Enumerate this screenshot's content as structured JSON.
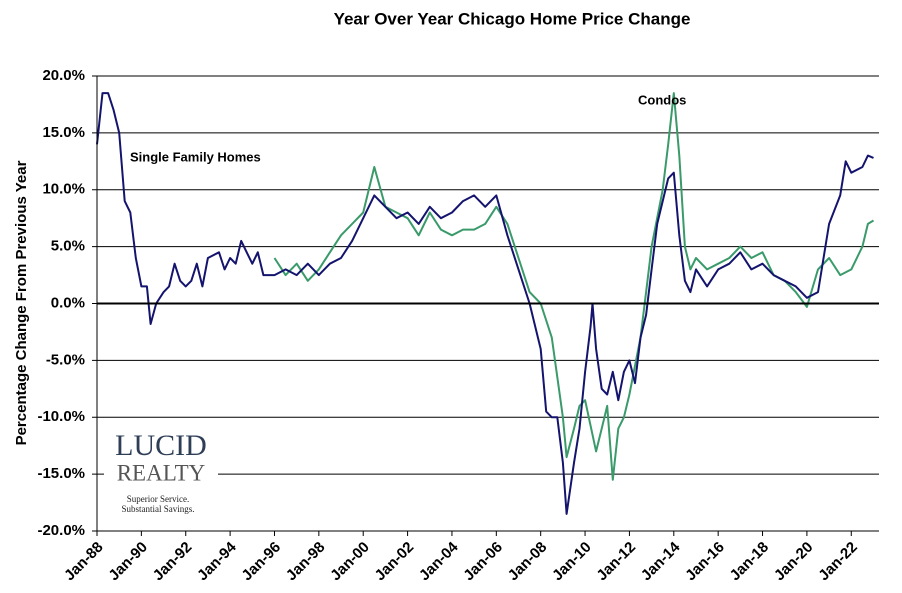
{
  "chart_data": {
    "type": "line",
    "title": "Year Over Year Chicago Home Price Change",
    "y_label": "Percentage Change From Previous Year",
    "annotations": [
      "Single Family Homes",
      "Condos"
    ],
    "xlim": [
      "1988-01",
      "2023-04"
    ],
    "xticks": [
      {
        "value": "1988-01",
        "label": "Jan-88"
      },
      {
        "value": "1990-01",
        "label": "Jan-90"
      },
      {
        "value": "1992-01",
        "label": "Jan-92"
      },
      {
        "value": "1994-01",
        "label": "Jan-94"
      },
      {
        "value": "1996-01",
        "label": "Jan-96"
      },
      {
        "value": "1998-01",
        "label": "Jan-98"
      },
      {
        "value": "2000-01",
        "label": "Jan-00"
      },
      {
        "value": "2002-01",
        "label": "Jan-02"
      },
      {
        "value": "2004-01",
        "label": "Jan-04"
      },
      {
        "value": "2006-01",
        "label": "Jan-06"
      },
      {
        "value": "2008-01",
        "label": "Jan-08"
      },
      {
        "value": "2010-01",
        "label": "Jan-10"
      },
      {
        "value": "2012-01",
        "label": "Jan-12"
      },
      {
        "value": "2014-01",
        "label": "Jan-14"
      },
      {
        "value": "2016-01",
        "label": "Jan-16"
      },
      {
        "value": "2018-01",
        "label": "Jan-18"
      },
      {
        "value": "2020-01",
        "label": "Jan-20"
      },
      {
        "value": "2022-01",
        "label": "Jan-22"
      }
    ],
    "ylim": [
      -20,
      20
    ],
    "yticks": [
      {
        "value": -20,
        "label": "-20.0%"
      },
      {
        "value": -15,
        "label": "-15.0%"
      },
      {
        "value": -10,
        "label": "-10.0%"
      },
      {
        "value": -5,
        "label": "-5.0%"
      },
      {
        "value": 0,
        "label": "0.0%"
      },
      {
        "value": 5,
        "label": "5.0%"
      },
      {
        "value": 10,
        "label": "10.0%"
      },
      {
        "value": 15,
        "label": "15.0%"
      },
      {
        "value": 20,
        "label": "20.0%"
      }
    ],
    "grid": true,
    "series": [
      {
        "name": "Single Family Homes",
        "color": "#14146e",
        "x": [
          "1988-01",
          "1988-04",
          "1988-07",
          "1988-10",
          "1989-01",
          "1989-04",
          "1989-07",
          "1989-10",
          "1990-01",
          "1990-04",
          "1990-06",
          "1990-09",
          "1991-01",
          "1991-04",
          "1991-07",
          "1991-10",
          "1992-01",
          "1992-04",
          "1992-07",
          "1992-10",
          "1993-01",
          "1993-07",
          "1993-10",
          "1994-01",
          "1994-04",
          "1994-07",
          "1994-10",
          "1995-01",
          "1995-04",
          "1995-07",
          "1996-01",
          "1996-07",
          "1997-01",
          "1997-07",
          "1998-01",
          "1998-07",
          "1999-01",
          "1999-07",
          "2000-01",
          "2000-07",
          "2001-01",
          "2001-07",
          "2002-01",
          "2002-07",
          "2003-01",
          "2003-07",
          "2004-01",
          "2004-07",
          "2005-01",
          "2005-07",
          "2006-01",
          "2006-07",
          "2007-01",
          "2007-07",
          "2008-01",
          "2008-04",
          "2008-07",
          "2008-10",
          "2009-01",
          "2009-03",
          "2009-07",
          "2009-10",
          "2010-01",
          "2010-04",
          "2010-05",
          "2010-07",
          "2010-10",
          "2011-01",
          "2011-04",
          "2011-07",
          "2011-10",
          "2012-01",
          "2012-04",
          "2012-07",
          "2012-10",
          "2013-01",
          "2013-04",
          "2013-07",
          "2013-10",
          "2014-01",
          "2014-04",
          "2014-07",
          "2014-10",
          "2015-01",
          "2015-07",
          "2016-01",
          "2016-07",
          "2017-01",
          "2017-07",
          "2018-01",
          "2018-07",
          "2019-01",
          "2019-07",
          "2020-01",
          "2020-07",
          "2021-01",
          "2021-07",
          "2021-10",
          "2022-01",
          "2022-07",
          "2022-10",
          "2023-01"
        ],
        "values": [
          14,
          18.5,
          18.5,
          17,
          15,
          9,
          8,
          4,
          1.5,
          1.5,
          -1.8,
          0,
          1,
          1.5,
          3.5,
          2,
          1.5,
          2,
          3.5,
          1.5,
          4,
          4.5,
          3,
          4,
          3.5,
          5.5,
          4.5,
          3.5,
          4.5,
          2.5,
          2.5,
          3,
          2.5,
          3.5,
          2.5,
          3.5,
          4,
          5.5,
          7.5,
          9.5,
          8.5,
          7.5,
          8,
          7,
          8.5,
          7.5,
          8,
          9,
          9.5,
          8.5,
          9.5,
          6,
          3,
          0,
          -4,
          -9.5,
          -10,
          -10,
          -14,
          -18.5,
          -14,
          -11,
          -6,
          -2,
          0,
          -4,
          -7.5,
          -8,
          -6,
          -8.5,
          -6,
          -5,
          -7,
          -3,
          -1,
          3,
          7,
          9,
          11,
          11.5,
          6,
          2,
          1,
          3,
          1.5,
          3,
          3.5,
          4.5,
          3,
          3.5,
          2.5,
          2,
          1.5,
          0.5,
          1,
          7,
          9.5,
          12.5,
          11.5,
          12,
          13,
          12.8
        ]
      },
      {
        "name": "Condos",
        "color": "#3a9a6a",
        "x": [
          "1996-01",
          "1996-07",
          "1997-01",
          "1997-07",
          "1998-01",
          "1998-07",
          "1999-01",
          "1999-07",
          "2000-01",
          "2000-07",
          "2001-01",
          "2001-07",
          "2002-01",
          "2002-07",
          "2003-01",
          "2003-07",
          "2004-01",
          "2004-07",
          "2005-01",
          "2005-07",
          "2006-01",
          "2006-07",
          "2007-01",
          "2007-07",
          "2008-01",
          "2008-07",
          "2009-01",
          "2009-03",
          "2009-07",
          "2009-10",
          "2010-01",
          "2010-07",
          "2010-10",
          "2011-01",
          "2011-04",
          "2011-07",
          "2011-10",
          "2012-01",
          "2012-07",
          "2012-10",
          "2013-01",
          "2013-07",
          "2013-10",
          "2014-01",
          "2014-04",
          "2014-07",
          "2014-10",
          "2015-01",
          "2015-07",
          "2016-01",
          "2016-07",
          "2017-01",
          "2017-07",
          "2018-01",
          "2018-07",
          "2019-01",
          "2019-07",
          "2020-01",
          "2020-07",
          "2021-01",
          "2021-07",
          "2022-01",
          "2022-07",
          "2022-10",
          "2023-01"
        ],
        "values": [
          4,
          2.5,
          3.5,
          2,
          3,
          4.5,
          6,
          7,
          8,
          12,
          8.5,
          8,
          7.5,
          6,
          8,
          6.5,
          6,
          6.5,
          6.5,
          7,
          8.5,
          7,
          4,
          1,
          0,
          -3,
          -10,
          -13.5,
          -11,
          -9,
          -8.5,
          -13,
          -11,
          -9,
          -15.5,
          -11,
          -10,
          -8,
          -3,
          1,
          5,
          10,
          14,
          18.5,
          13,
          5,
          3,
          4,
          3,
          3.5,
          4,
          5,
          4,
          4.5,
          2.5,
          2,
          1,
          -0.3,
          3,
          4,
          2.5,
          3,
          5,
          7,
          7.3
        ]
      }
    ]
  },
  "logo": {
    "name_1": "LUCID",
    "name_2": "REALTY",
    "tagline_1": "Superior Service.",
    "tagline_2": "Substantial Savings."
  }
}
